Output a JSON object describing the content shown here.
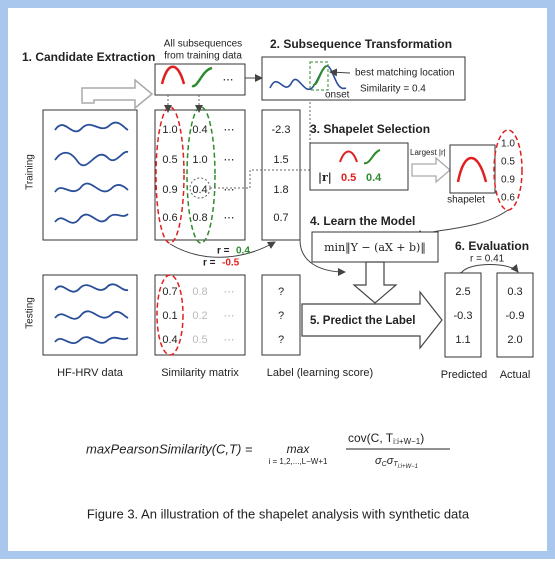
{
  "figure": {
    "step1": "1. Candidate Extraction",
    "subseq_caption": [
      "All subsequences",
      "from training data"
    ],
    "step2": "2. Subsequence Transformation",
    "best_matching": "best matching location",
    "onset": "onset",
    "similarity": "Similarity = 0.4",
    "training": "Training",
    "testing": "Testing",
    "train_matrix": [
      [
        "1.0",
        "0.4"
      ],
      [
        "0.5",
        "1.0"
      ],
      [
        "0.9",
        "0.4"
      ],
      [
        "0.6",
        "0.8"
      ]
    ],
    "ellipsis": "⋯",
    "train_labels": [
      "-2.3",
      "1.5",
      "1.8",
      "0.7"
    ],
    "step3": "3. Shapelet Selection",
    "abs_r": "|r|",
    "r_red": "0.5",
    "r_green": "0.4",
    "largest": "Largest |r|",
    "shapelet": "shapelet",
    "shapelet_values": [
      "1.0",
      "0.5",
      "0.9",
      "0.6"
    ],
    "r_prefix": "r =",
    "r_green_value": "0.4",
    "r_red_value": "-0.5",
    "step4": "4. Learn the Model",
    "model": "min‖Y − (aX + b)‖",
    "step6": "6. Evaluation",
    "eval_r": "r = 0.41",
    "test_matrix": [
      [
        "0.7",
        "0.8"
      ],
      [
        "0.1",
        "0.2"
      ],
      [
        "0.4",
        "0.5"
      ]
    ],
    "test_labels": [
      "?",
      "?",
      "?"
    ],
    "step5": "5. Predict the Label",
    "predicted": [
      "2.5",
      "-0.3",
      "1.1"
    ],
    "actual": [
      "0.3",
      "-0.9",
      "2.0"
    ],
    "bottom_labels": [
      "HF-HRV data",
      "Similarity matrix",
      "Label (learning score)",
      "Predicted",
      "Actual"
    ],
    "formula": {
      "lhs": "maxPearsonSimilarity(C,T) =",
      "max": "max",
      "range": "i = 1,2,...,L−W+1",
      "numerator": "cov(C, T",
      "numerator_sub": "i:i+W−1",
      "numerator_end": ")",
      "denominator": "σ",
      "denominator_sub1": "C",
      "denominator2": "σ",
      "denominator_sub2": "T",
      "denominator_sub3": "i:i+W−1"
    },
    "caption": "Figure 3. An illustration of the shapelet analysis with synthetic data"
  }
}
